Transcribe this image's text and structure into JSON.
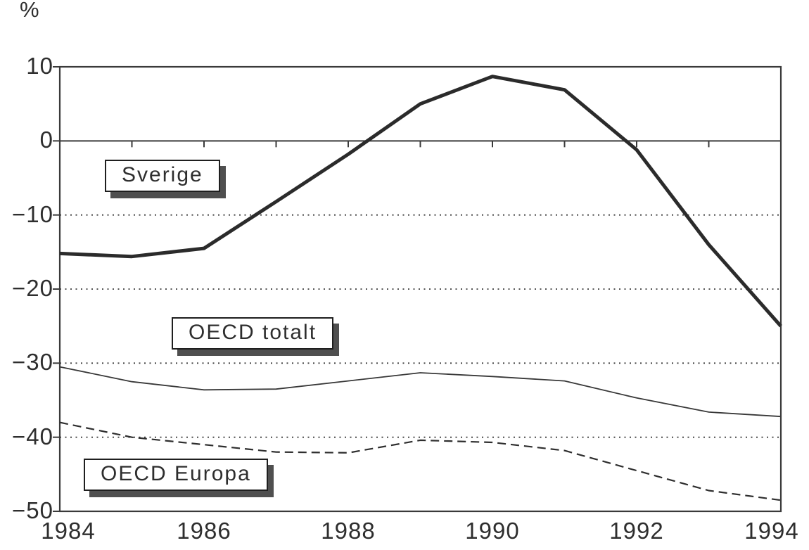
{
  "chart_data": {
    "type": "line",
    "title": "",
    "unit_label": "%",
    "xlabel": "",
    "ylabel": "%",
    "xlim": [
      1984,
      1994
    ],
    "ylim": [
      -50,
      10
    ],
    "x": [
      1984,
      1985,
      1986,
      1987,
      1988,
      1989,
      1990,
      1991,
      1992,
      1993,
      1994
    ],
    "x_tick_years": [
      1984,
      1986,
      1988,
      1990,
      1992,
      1994
    ],
    "x_tick_labels": [
      "1984",
      "1986",
      "1988",
      "1990",
      "1992",
      "1994"
    ],
    "y_tick_values": [
      10,
      0,
      -10,
      -20,
      -30,
      -40,
      -50
    ],
    "y_tick_labels": [
      "10",
      "0",
      "−10",
      "−20",
      "−30",
      "−40",
      "−50"
    ],
    "gridlines_dotted_at": [
      -10,
      -20,
      -30,
      -40
    ],
    "zero_line": true,
    "zero_line_year_ticks": [
      1985,
      1986,
      1987,
      1988,
      1989,
      1990,
      1991,
      1992,
      1993
    ],
    "legend_position": "inline-boxes",
    "series": [
      {
        "name": "Sverige",
        "style": "thick-solid",
        "values": [
          -15.2,
          -15.6,
          -14.5,
          -8.2,
          -1.8,
          5.0,
          8.7,
          6.9,
          -1.2,
          -14.0,
          -25.0
        ]
      },
      {
        "name": "OECD totalt",
        "style": "thin-solid",
        "values": [
          -30.5,
          -32.5,
          -33.6,
          -33.5,
          -32.4,
          -31.3,
          -31.8,
          -32.4,
          -34.7,
          -36.6,
          -37.2
        ]
      },
      {
        "name": "OECD Europa",
        "style": "dashed",
        "values": [
          -38.0,
          -40.0,
          -41.0,
          -42.0,
          -42.1,
          -40.4,
          -40.7,
          -41.8,
          -44.5,
          -47.2,
          -48.5
        ]
      }
    ],
    "colors": {
      "line": "#2b2b2b",
      "grid": "#3d3d3d",
      "box_shadow": "#4f4f4f",
      "background": "#ffffff"
    }
  }
}
